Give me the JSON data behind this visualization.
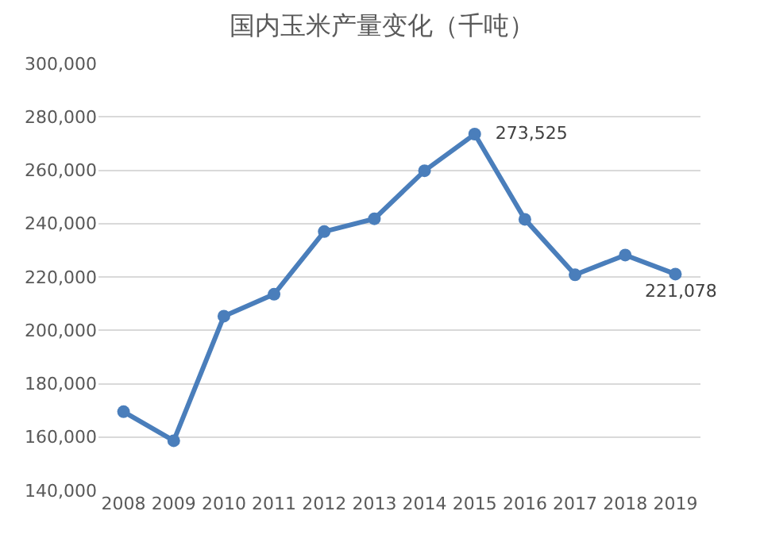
{
  "chart_data": {
    "type": "line",
    "title": "国内玉米产量变化（千吨）",
    "categories": [
      "2008",
      "2009",
      "2010",
      "2011",
      "2012",
      "2013",
      "2014",
      "2015",
      "2016",
      "2017",
      "2018",
      "2019"
    ],
    "series": [
      {
        "color": "#4a7ebb",
        "values": [
          169500,
          158600,
          205300,
          213500,
          237000,
          241800,
          259800,
          273525,
          241600,
          220800,
          228200,
          221078
        ],
        "value_labels": [
          null,
          null,
          null,
          null,
          null,
          null,
          null,
          "273,525",
          null,
          null,
          null,
          "221,078"
        ]
      }
    ],
    "ylim": [
      140000,
      300000
    ],
    "yticks": [
      {
        "value": 140000,
        "label": "140,000"
      },
      {
        "value": 160000,
        "label": "160,000"
      },
      {
        "value": 180000,
        "label": "180,000"
      },
      {
        "value": 200000,
        "label": "200,000"
      },
      {
        "value": 220000,
        "label": "220,000"
      },
      {
        "value": 240000,
        "label": "240,000"
      },
      {
        "value": 260000,
        "label": "260,000"
      },
      {
        "value": 280000,
        "label": "280,000"
      },
      {
        "value": 300000,
        "label": "300,000"
      }
    ],
    "grid": "y",
    "legend": false,
    "marker": "circle",
    "line_style": "solid"
  }
}
